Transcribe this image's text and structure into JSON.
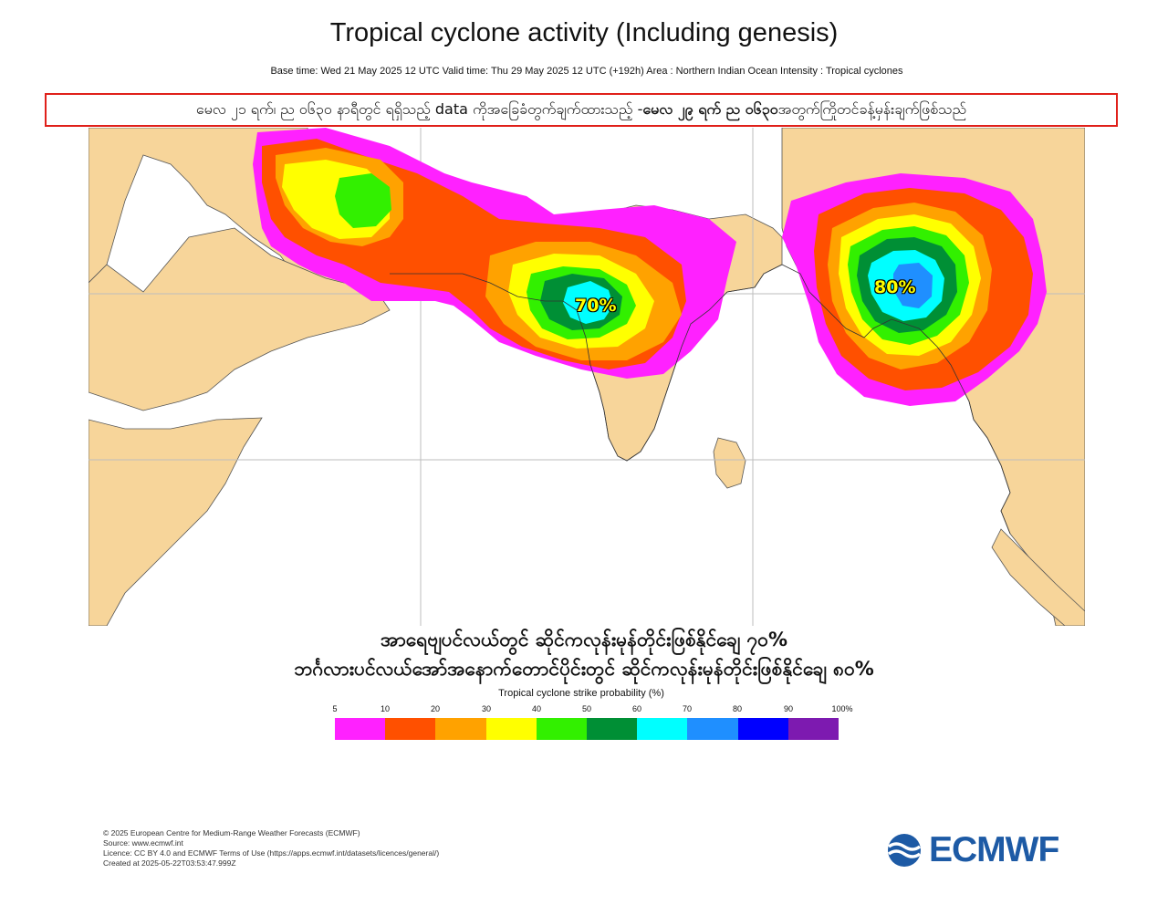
{
  "header": {
    "title": "Tropical cyclone activity (Including genesis)",
    "subtitle": "Base time: Wed 21 May 2025 12 UTC Valid time: Thu 29 May 2025 12 UTC (+192h) Area : Northern Indian Ocean Intensity : Tropical cyclones"
  },
  "notice": {
    "part1": "မေလ ၂၁ ရက်၊ ည ၀၆၃၀ နာရီတွင် ရရှိသည့် data ကိုအခြေခံတွက်ချက်ထားသည့် - ",
    "part2_bold": "မေလ ၂၉ ရက် ည ၀၆၃၀",
    "part3": " အတွက်ကြိုတင်ခန့်မှန်းချက်ဖြစ်သည်",
    "border_color": "#e0201a"
  },
  "map": {
    "ocean_color": "#ffffff",
    "land_color": "#f7d59a",
    "annotations": [
      {
        "id": "arabian-sea-peak",
        "label": "70%"
      },
      {
        "id": "bay-of-bengal-peak",
        "label": "80%"
      }
    ]
  },
  "summary": {
    "line1": "အာရေဗျပင်လယ်တွင် ဆိုင်ကလုန်းမုန်တိုင်းဖြစ်နိုင်ချေ ၇၀%",
    "line2": "ဘင်္ဂလားပင်လယ်အော်အနောက်တောင်ပိုင်းတွင် ဆိုင်ကလုန်းမုန်တိုင်းဖြစ်နိုင်ချေ ၈၀%"
  },
  "colorbar": {
    "title": "Tropical cyclone strike probability (%)",
    "ticks": [
      "5",
      "10",
      "20",
      "30",
      "40",
      "50",
      "60",
      "70",
      "80",
      "90",
      "100%"
    ],
    "colors": [
      "#ff21ff",
      "#ff5000",
      "#ffa200",
      "#ffff00",
      "#32f000",
      "#008f35",
      "#00ffff",
      "#1f8fff",
      "#0000ff",
      "#7d1ab0"
    ]
  },
  "credits": {
    "line1": "© 2025 European Centre for Medium-Range Weather Forecasts (ECMWF)",
    "line2": "Source: www.ecmwf.int",
    "line3": "Licence: CC BY 4.0 and ECMWF Terms of Use (https://apps.ecmwf.int/datasets/licences/general/)",
    "line4": "Created at 2025-05-22T03:53:47.999Z"
  },
  "logo": {
    "text": "ECMWF",
    "color": "#1d5aa5"
  }
}
